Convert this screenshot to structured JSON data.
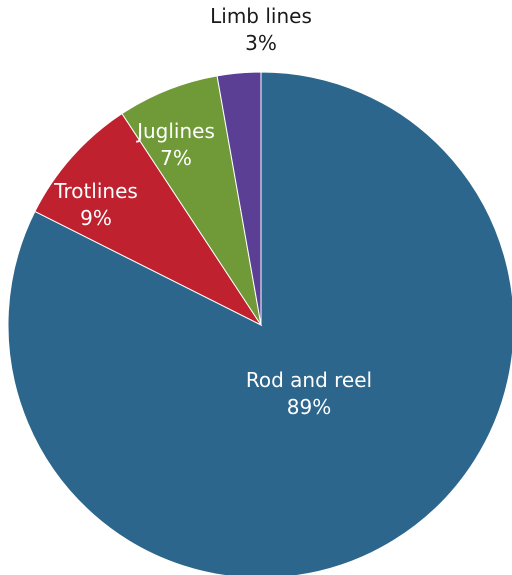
{
  "chart_data": {
    "type": "pie",
    "start_angle_deg": 0,
    "direction": "clockwise",
    "slices": [
      {
        "label": "Rod and reel",
        "value_label": "89%",
        "value": 89,
        "color": "#2d668c"
      },
      {
        "label": "Trotlines",
        "value_label": "9%",
        "value": 9,
        "color": "#c0212f"
      },
      {
        "label": "Juglines",
        "value_label": "7%",
        "value": 7,
        "color": "#6f9a37"
      },
      {
        "label": "Limb lines",
        "value_label": "3%",
        "value": 3,
        "color": "#5b3f95"
      }
    ]
  }
}
